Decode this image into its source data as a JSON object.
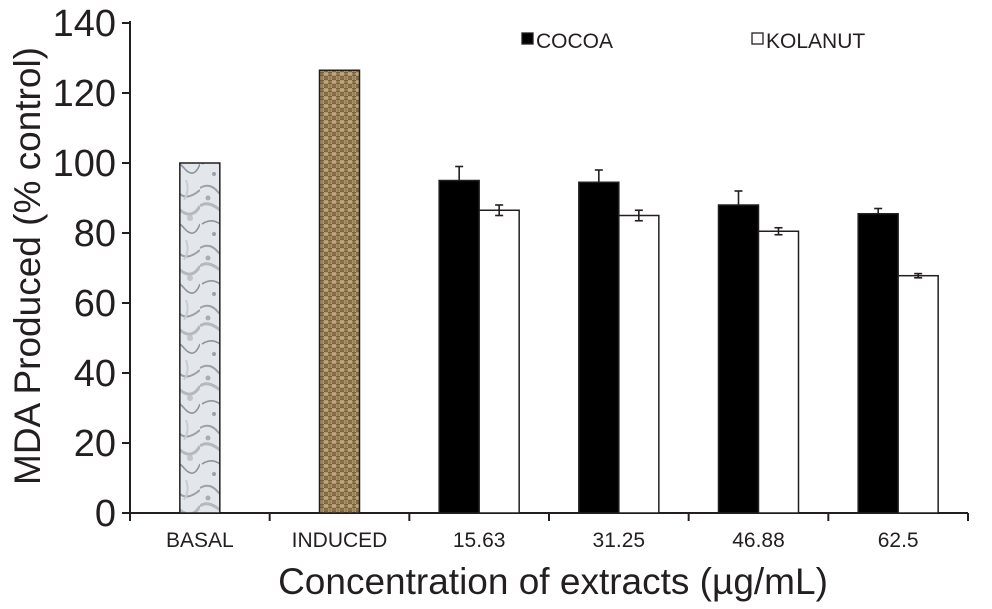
{
  "chart_data": {
    "type": "bar",
    "title": "",
    "xlabel": "Concentration of extracts (µg/mL)",
    "ylabel": "MDA Produced (% control)",
    "ylim": [
      0,
      140
    ],
    "yticks": [
      0,
      20,
      40,
      60,
      80,
      100,
      120,
      140
    ],
    "categories": [
      "BASAL",
      "INDUCED",
      "15.63",
      "31.25",
      "46.88",
      "62.5"
    ],
    "grid": false,
    "legend_position": "top-right",
    "controls": [
      {
        "category": "BASAL",
        "value": 100,
        "pattern": "marble",
        "color": "#d3d8de"
      },
      {
        "category": "INDUCED",
        "value": 126.5,
        "pattern": "burlap",
        "color": "#9c7f52"
      }
    ],
    "series": [
      {
        "name": "COCOA",
        "color": "#000000",
        "values": [
          null,
          null,
          95,
          94.5,
          88,
          85.5
        ],
        "errors": [
          null,
          null,
          4,
          3.5,
          4,
          1.5
        ]
      },
      {
        "name": "KOLANUT",
        "color": "#ffffff",
        "values": [
          null,
          null,
          86.5,
          85,
          80.5,
          67.8
        ],
        "errors": [
          null,
          null,
          1.5,
          1.5,
          1,
          0.6
        ]
      }
    ]
  }
}
